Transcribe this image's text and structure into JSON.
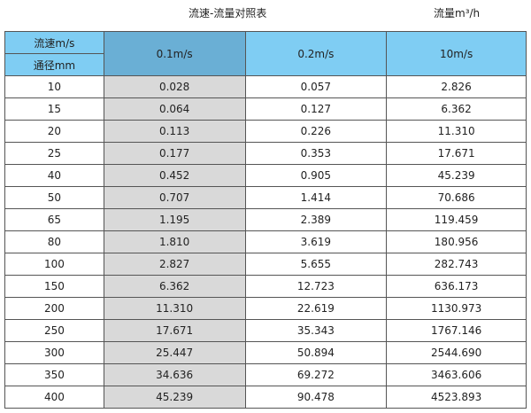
{
  "title": "流速-流量对照表",
  "unit": "流量m³/h",
  "header": {
    "speed_label": "流速m/s",
    "diameter_label": "通径mm",
    "cols": [
      "0.1m/s",
      "0.2m/s",
      "10m/s"
    ]
  },
  "rows": [
    [
      "10",
      "0.028",
      "0.057",
      "2.826"
    ],
    [
      "15",
      "0.064",
      "0.127",
      "6.362"
    ],
    [
      "20",
      "0.113",
      "0.226",
      "11.310"
    ],
    [
      "25",
      "0.177",
      "0.353",
      "17.671"
    ],
    [
      "40",
      "0.452",
      "0.905",
      "45.239"
    ],
    [
      "50",
      "0.707",
      "1.414",
      "70.686"
    ],
    [
      "65",
      "1.195",
      "2.389",
      "119.459"
    ],
    [
      "80",
      "1.810",
      "3.619",
      "180.956"
    ],
    [
      "100",
      "2.827",
      "5.655",
      "282.743"
    ],
    [
      "150",
      "6.362",
      "12.723",
      "636.173"
    ],
    [
      "200",
      "11.310",
      "22.619",
      "1130.973"
    ],
    [
      "250",
      "17.671",
      "35.343",
      "1767.146"
    ],
    [
      "300",
      "25.447",
      "50.894",
      "2544.690"
    ],
    [
      "350",
      "34.636",
      "69.272",
      "3463.606"
    ],
    [
      "400",
      "45.239",
      "90.478",
      "4523.893"
    ]
  ],
  "colors": {
    "header": "#7fcdf3",
    "selected_header": "#6aafd5",
    "selected_column": "#d9d9d9"
  }
}
